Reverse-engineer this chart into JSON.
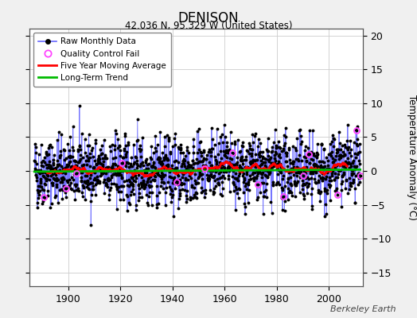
{
  "title": "DENISON",
  "subtitle": "42.036 N, 95.329 W (United States)",
  "ylabel": "Temperature Anomaly (°C)",
  "watermark": "Berkeley Earth",
  "xlim": [
    1885,
    2013
  ],
  "ylim": [
    -17,
    21
  ],
  "yticks": [
    -15,
    -10,
    -5,
    0,
    5,
    10,
    15,
    20
  ],
  "xticks": [
    1900,
    1920,
    1940,
    1960,
    1980,
    2000
  ],
  "bg_color": "#f0f0f0",
  "plot_bg": "#ffffff",
  "raw_line_color": "#6666ff",
  "raw_dot_color": "#000000",
  "qc_fail_color": "#ff44ff",
  "moving_avg_color": "#ff0000",
  "trend_color": "#00bb00",
  "seed": 42,
  "start_year": 1887,
  "end_year": 2012,
  "n_months": 1512
}
